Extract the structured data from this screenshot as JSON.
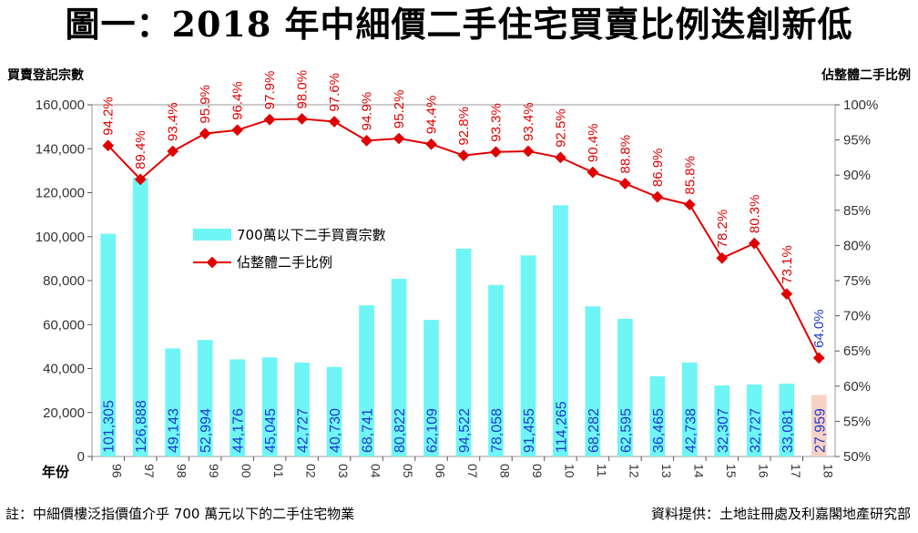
{
  "chart_data": {
    "type": "bar+line",
    "title": "圖一：2018 年中細價二手住宅買賣比例迭創新低",
    "xlabel": "年份",
    "ylabel_left": "買賣登記宗數",
    "ylabel_right": "佔整體二手比例",
    "categories": [
      "96",
      "97",
      "98",
      "99",
      "00",
      "01",
      "02",
      "03",
      "04",
      "05",
      "06",
      "07",
      "08",
      "09",
      "10",
      "11",
      "12",
      "13",
      "14",
      "15",
      "16",
      "17",
      "18"
    ],
    "series": [
      {
        "name": "700萬以下二手買賣宗數",
        "type": "bar",
        "axis": "left",
        "values": [
          101305,
          126888,
          49143,
          52994,
          44176,
          45045,
          42727,
          40730,
          68741,
          80822,
          62109,
          94522,
          78058,
          91455,
          114265,
          68282,
          62595,
          36465,
          42738,
          32307,
          32727,
          33081,
          27959
        ],
        "labels": [
          "101,305",
          "126,888",
          "49,143",
          "52,994",
          "44,176",
          "45,045",
          "42,727",
          "40,730",
          "68,741",
          "80,822",
          "62,109",
          "94,522",
          "78,058",
          "91,455",
          "114,265",
          "68,282",
          "62,595",
          "36,465",
          "42,738",
          "32,307",
          "32,727",
          "33,081",
          "27,959"
        ]
      },
      {
        "name": "佔整體二手比例",
        "type": "line",
        "axis": "right",
        "values": [
          94.2,
          89.4,
          93.4,
          95.9,
          96.4,
          97.9,
          98.0,
          97.6,
          94.9,
          95.2,
          94.4,
          92.8,
          93.3,
          93.4,
          92.5,
          90.4,
          88.8,
          86.9,
          85.8,
          78.2,
          80.3,
          73.1,
          64.0
        ],
        "labels": [
          "94.2%",
          "89.4%",
          "93.4%",
          "95.9%",
          "96.4%",
          "97.9%",
          "98.0%",
          "97.6%",
          "94.9%",
          "95.2%",
          "94.4%",
          "92.8%",
          "93.3%",
          "93.4%",
          "92.5%",
          "90.4%",
          "88.8%",
          "86.9%",
          "85.8%",
          "78.2%",
          "80.3%",
          "73.1%",
          "64.0%"
        ]
      }
    ],
    "ylim_left": [
      0,
      160000
    ],
    "yticks_left": [
      "0",
      "20,000",
      "40,000",
      "60,000",
      "80,000",
      "100,000",
      "120,000",
      "140,000",
      "160,000"
    ],
    "ylim_right": [
      50,
      100
    ],
    "yticks_right": [
      "50%",
      "55%",
      "60%",
      "65%",
      "70%",
      "75%",
      "80%",
      "85%",
      "90%",
      "95%",
      "100%"
    ],
    "grid": false,
    "legend_position": "upper-left-inside",
    "colors": {
      "bar": "#6ff5f5",
      "bar_highlight": "#f7d2c4",
      "line": "#e00000",
      "bar_label": "#1f3bd1",
      "highlight_label": "#1f3bd1"
    }
  },
  "footer": {
    "note": "註：中細價樓泛指價值介乎 700 萬元以下的二手住宅物業",
    "source": "資料提供：土地註冊處及利嘉閣地產研究部"
  }
}
